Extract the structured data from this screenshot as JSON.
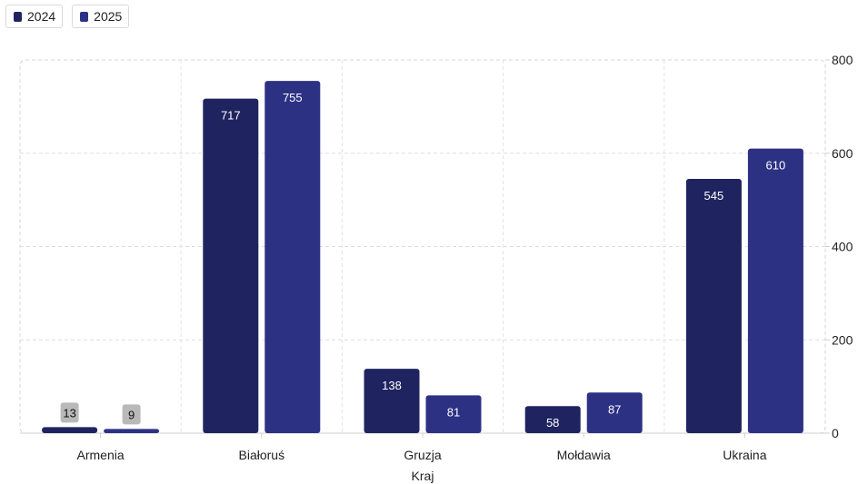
{
  "legend": [
    {
      "label": "2024",
      "color": "#1f2460"
    },
    {
      "label": "2025",
      "color": "#2d3184"
    }
  ],
  "chart_data": {
    "type": "bar",
    "categories": [
      "Armenia",
      "Białoruś",
      "Gruzja",
      "Mołdawia",
      "Ukraina"
    ],
    "series": [
      {
        "name": "2024",
        "values": [
          13,
          717,
          138,
          58,
          545
        ],
        "color": "#1f2460"
      },
      {
        "name": "2025",
        "values": [
          9,
          755,
          81,
          87,
          610
        ],
        "color": "#2d3184"
      }
    ],
    "xlabel": "Kraj",
    "ylabel": "",
    "ylim": [
      0,
      800
    ],
    "yticks": [
      0,
      200,
      400,
      600,
      800
    ],
    "grid": true,
    "legend_position": "top-left",
    "y_axis_side": "right"
  }
}
